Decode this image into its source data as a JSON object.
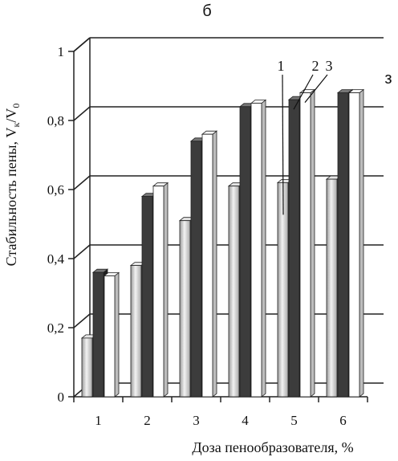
{
  "panel_label": "б",
  "corner_label": "з",
  "chart_data": {
    "type": "bar",
    "categories": [
      "1",
      "2",
      "3",
      "4",
      "5",
      "6"
    ],
    "series": [
      {
        "name": "1",
        "values": [
          0.17,
          0.38,
          0.51,
          0.61,
          0.62,
          0.63
        ]
      },
      {
        "name": "2",
        "values": [
          0.36,
          0.58,
          0.74,
          0.84,
          0.86,
          0.88
        ]
      },
      {
        "name": "3",
        "values": [
          0.35,
          0.61,
          0.76,
          0.85,
          0.88,
          0.88
        ]
      }
    ],
    "xlabel": "Доза пенообразователя, %",
    "ylabel": "Стабильность пены, V",
    "ylabel_sub1": "к",
    "ylabel_mid": "/V",
    "ylabel_sub2": "0",
    "ylim": [
      0,
      1
    ],
    "yticks": [
      "0",
      "0,2",
      "0,4",
      "0,6",
      "0,8",
      "1"
    ],
    "grid": true,
    "style": "3d-clustered",
    "series_colors": [
      "#c8c8c8",
      "#3c3c3c",
      "#ffffff"
    ]
  }
}
